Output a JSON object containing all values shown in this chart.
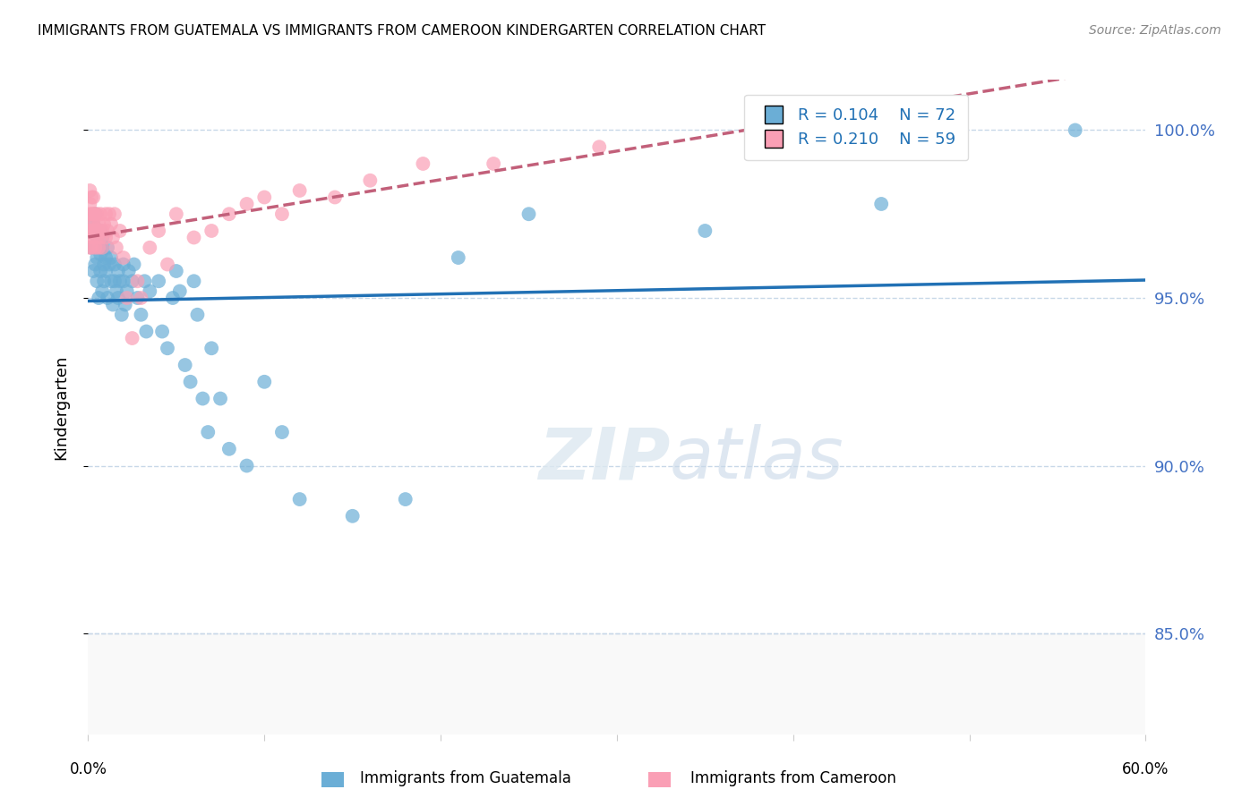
{
  "title": "IMMIGRANTS FROM GUATEMALA VS IMMIGRANTS FROM CAMEROON KINDERGARTEN CORRELATION CHART",
  "source": "Source: ZipAtlas.com",
  "ylabel": "Kindergarten",
  "yticks": [
    85.0,
    90.0,
    95.0,
    100.0
  ],
  "xlim": [
    0.0,
    0.6
  ],
  "ylim": [
    82.0,
    101.5
  ],
  "r_guatemala": 0.104,
  "n_guatemala": 72,
  "r_cameroon": 0.21,
  "n_cameroon": 59,
  "legend_label_1": "Immigrants from Guatemala",
  "legend_label_2": "Immigrants from Cameroon",
  "color_guatemala": "#6baed6",
  "color_cameroon": "#fa9fb5",
  "trendline_guatemala_color": "#2171b5",
  "trendline_cameroon_color": "#c2607a",
  "background_color": "#ffffff",
  "grid_color": "#c8d8e8",
  "watermark_zip": "ZIP",
  "watermark_atlas": "atlas",
  "guatemala_x": [
    0.002,
    0.003,
    0.003,
    0.004,
    0.004,
    0.005,
    0.005,
    0.005,
    0.005,
    0.006,
    0.006,
    0.007,
    0.007,
    0.007,
    0.008,
    0.008,
    0.008,
    0.009,
    0.009,
    0.01,
    0.01,
    0.011,
    0.011,
    0.012,
    0.013,
    0.013,
    0.014,
    0.015,
    0.015,
    0.016,
    0.017,
    0.017,
    0.018,
    0.019,
    0.02,
    0.02,
    0.021,
    0.022,
    0.023,
    0.025,
    0.026,
    0.028,
    0.03,
    0.032,
    0.033,
    0.035,
    0.04,
    0.042,
    0.045,
    0.048,
    0.05,
    0.052,
    0.055,
    0.058,
    0.06,
    0.062,
    0.065,
    0.068,
    0.07,
    0.075,
    0.08,
    0.09,
    0.1,
    0.11,
    0.12,
    0.15,
    0.18,
    0.21,
    0.25,
    0.35,
    0.45,
    0.56
  ],
  "guatemala_y": [
    96.5,
    97.2,
    95.8,
    96.0,
    97.5,
    96.8,
    97.0,
    95.5,
    96.2,
    96.5,
    95.0,
    97.0,
    96.3,
    95.8,
    96.5,
    95.2,
    96.8,
    95.5,
    96.0,
    96.2,
    95.8,
    96.5,
    95.0,
    96.0,
    95.5,
    96.2,
    94.8,
    95.5,
    96.0,
    95.2,
    95.8,
    95.0,
    95.5,
    94.5,
    95.5,
    96.0,
    94.8,
    95.2,
    95.8,
    95.5,
    96.0,
    95.0,
    94.5,
    95.5,
    94.0,
    95.2,
    95.5,
    94.0,
    93.5,
    95.0,
    95.8,
    95.2,
    93.0,
    92.5,
    95.5,
    94.5,
    92.0,
    91.0,
    93.5,
    92.0,
    90.5,
    90.0,
    92.5,
    91.0,
    89.0,
    88.5,
    89.0,
    96.2,
    97.5,
    97.0,
    97.8,
    100.0
  ],
  "cameroon_x": [
    0.001,
    0.001,
    0.001,
    0.001,
    0.001,
    0.002,
    0.002,
    0.002,
    0.002,
    0.002,
    0.002,
    0.003,
    0.003,
    0.003,
    0.003,
    0.004,
    0.004,
    0.004,
    0.005,
    0.005,
    0.005,
    0.006,
    0.006,
    0.006,
    0.007,
    0.007,
    0.008,
    0.008,
    0.009,
    0.01,
    0.01,
    0.011,
    0.012,
    0.013,
    0.014,
    0.015,
    0.016,
    0.018,
    0.02,
    0.022,
    0.025,
    0.028,
    0.03,
    0.035,
    0.04,
    0.045,
    0.05,
    0.06,
    0.07,
    0.08,
    0.09,
    0.1,
    0.11,
    0.12,
    0.14,
    0.16,
    0.19,
    0.23,
    0.29
  ],
  "cameroon_y": [
    97.0,
    97.5,
    96.5,
    97.8,
    98.2,
    96.8,
    97.2,
    98.0,
    97.5,
    96.5,
    97.0,
    97.5,
    98.0,
    96.8,
    97.2,
    97.0,
    96.5,
    97.5,
    97.0,
    96.8,
    97.5,
    97.2,
    96.5,
    97.0,
    96.8,
    97.5,
    97.0,
    96.5,
    97.2,
    97.5,
    96.8,
    97.0,
    97.5,
    97.2,
    96.8,
    97.5,
    96.5,
    97.0,
    96.2,
    95.0,
    93.8,
    95.5,
    95.0,
    96.5,
    97.0,
    96.0,
    97.5,
    96.8,
    97.0,
    97.5,
    97.8,
    98.0,
    97.5,
    98.2,
    98.0,
    98.5,
    99.0,
    99.0,
    99.5
  ]
}
